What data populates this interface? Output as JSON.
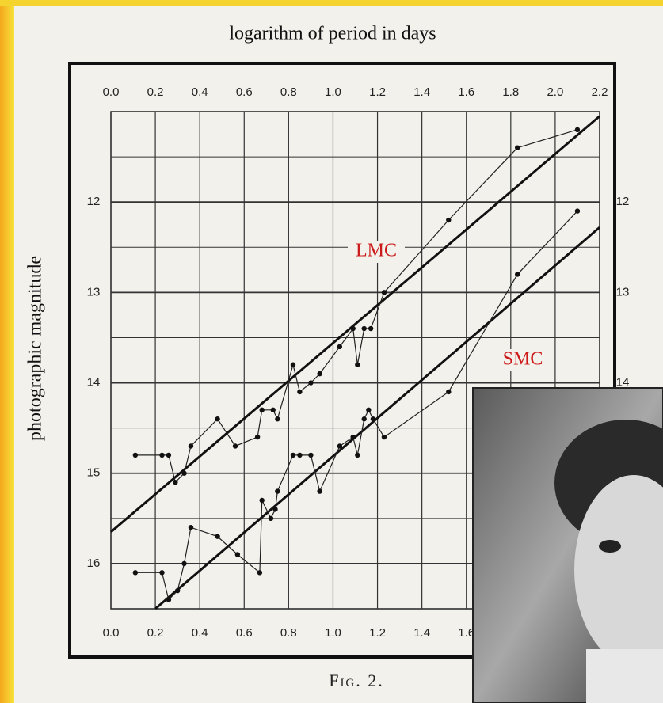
{
  "chart_data": {
    "type": "line",
    "title": "logarithm of period in days",
    "y_label": "photographic magnitude",
    "caption": "Fig. 2.",
    "xlim": [
      0,
      2.2
    ],
    "ylim": [
      16.5,
      11
    ],
    "xticks": [
      {
        "value": 0,
        "label": "0.0"
      },
      0.2,
      0.4,
      0.6,
      0.8,
      {
        "value": 1,
        "label": "1.0"
      },
      1.2,
      1.4,
      1.6,
      1.8,
      {
        "value": 2,
        "label": "2.0"
      },
      2.2
    ],
    "yticks": [
      12,
      13,
      14,
      15,
      16
    ],
    "ygrid": [
      11.5,
      12,
      12.5,
      13,
      13.5,
      14,
      14.5,
      15,
      15.5,
      16
    ],
    "grid": true,
    "series": [
      {
        "name": "LMC",
        "color": "#cc1a1a",
        "x": [
          0.11,
          0.23,
          0.26,
          0.29,
          0.33,
          0.36,
          0.48,
          0.56,
          0.66,
          0.68,
          0.73,
          0.75,
          0.82,
          0.85,
          0.9,
          0.94,
          1.03,
          1.09,
          1.11,
          1.14,
          1.17,
          1.23,
          1.52,
          1.83,
          2.1
        ],
        "values": [
          14.8,
          14.8,
          14.8,
          15.1,
          15.0,
          14.7,
          14.4,
          14.7,
          14.6,
          14.3,
          14.3,
          14.4,
          13.8,
          14.1,
          14.0,
          13.9,
          13.6,
          13.4,
          13.8,
          13.4,
          13.4,
          13.0,
          12.2,
          11.4,
          11.2
        ]
      },
      {
        "name": "SMC",
        "color": "#cc1a1a",
        "x": [
          0.11,
          0.23,
          0.26,
          0.3,
          0.33,
          0.36,
          0.48,
          0.57,
          0.67,
          0.68,
          0.72,
          0.74,
          0.75,
          0.82,
          0.85,
          0.9,
          0.94,
          1.03,
          1.09,
          1.11,
          1.14,
          1.16,
          1.18,
          1.23,
          1.52,
          1.83,
          2.1
        ],
        "values": [
          16.1,
          16.1,
          16.4,
          16.3,
          16.0,
          15.6,
          15.7,
          15.9,
          16.1,
          15.3,
          15.5,
          15.4,
          15.2,
          14.8,
          14.8,
          14.8,
          15.2,
          14.7,
          14.6,
          14.8,
          14.4,
          14.3,
          14.4,
          14.6,
          14.1,
          12.8,
          12.1
        ]
      }
    ],
    "fit_lines": [
      {
        "x": [
          0,
          2.2
        ],
        "values": [
          15.65,
          11.05
        ]
      },
      {
        "x": [
          0.2,
          2.2
        ],
        "values": [
          16.5,
          12.28
        ]
      }
    ]
  }
}
